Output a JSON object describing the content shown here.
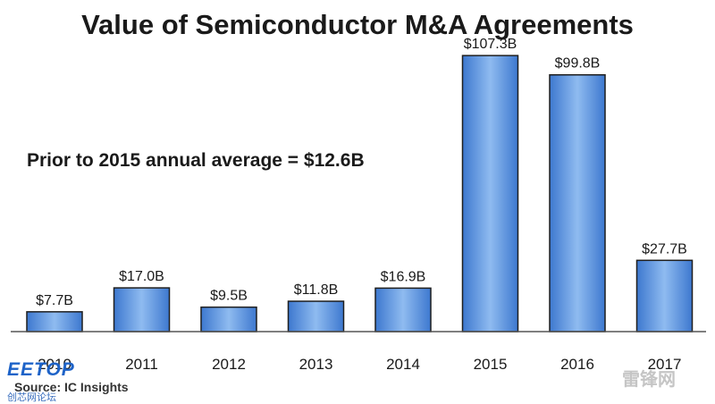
{
  "chart_data": {
    "type": "bar",
    "title": "Value of Semiconductor M&A Agreements",
    "annotation": "Prior to 2015 annual average = $12.6B",
    "categories": [
      "2010",
      "2011",
      "2012",
      "2013",
      "2014",
      "2015",
      "2016",
      "2017"
    ],
    "values": [
      7.7,
      17.0,
      9.5,
      11.8,
      16.9,
      107.3,
      99.8,
      27.7
    ],
    "data_labels": [
      "$7.7B",
      "$17.0B",
      "$9.5B",
      "$11.8B",
      "$16.9B",
      "$107.3B",
      "$99.8B",
      "$27.7B"
    ],
    "ylim": [
      0,
      115
    ],
    "grid": false,
    "bar_color": "#8fbbf0",
    "bar_color_dark": "#3d78cf"
  },
  "source": "Source: IC Insights",
  "watermark_logo": "EETOP",
  "watermark_logo_sub": "创芯网论坛",
  "watermark_corner": "雷锋网"
}
